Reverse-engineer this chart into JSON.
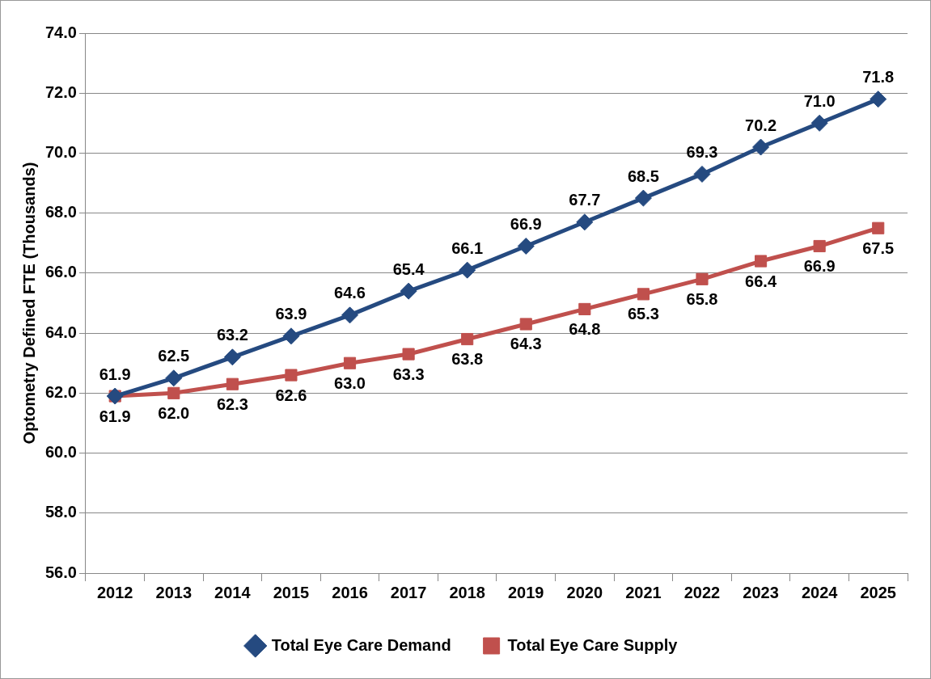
{
  "chart_data": {
    "type": "line",
    "ylabel": "Optometry Defined FTE (Thousands)",
    "categories": [
      "2012",
      "2013",
      "2014",
      "2015",
      "2016",
      "2017",
      "2018",
      "2019",
      "2020",
      "2021",
      "2022",
      "2023",
      "2024",
      "2025"
    ],
    "series": [
      {
        "name": "Total Eye Care Demand",
        "color": "#254a80",
        "marker": "diamond",
        "values": [
          61.9,
          62.5,
          63.2,
          63.9,
          64.6,
          65.4,
          66.1,
          66.9,
          67.7,
          68.5,
          69.3,
          70.2,
          71.0,
          71.8
        ],
        "value_labels": [
          "61.9",
          "62.5",
          "63.2",
          "63.9",
          "64.6",
          "65.4",
          "66.1",
          "66.9",
          "67.7",
          "68.5",
          "69.3",
          "70.2",
          "71.0",
          "71.8"
        ]
      },
      {
        "name": "Total Eye Care Supply",
        "color": "#c0504d",
        "marker": "square",
        "values": [
          61.9,
          62.0,
          62.3,
          62.6,
          63.0,
          63.3,
          63.8,
          64.3,
          64.8,
          65.3,
          65.8,
          66.4,
          66.9,
          67.5
        ],
        "value_labels": [
          "61.9",
          "62.0",
          "62.3",
          "62.6",
          "63.0",
          "63.3",
          "63.8",
          "64.3",
          "64.8",
          "65.3",
          "65.8",
          "66.4",
          "66.9",
          "67.5"
        ]
      }
    ],
    "ylim": [
      56,
      74
    ],
    "yticks": [
      {
        "value": 56,
        "label": "56.0"
      },
      {
        "value": 58,
        "label": "58.0"
      },
      {
        "value": 60,
        "label": "60.0"
      },
      {
        "value": 62,
        "label": "62.0"
      },
      {
        "value": 64,
        "label": "64.0"
      },
      {
        "value": 66,
        "label": "66.0"
      },
      {
        "value": 68,
        "label": "68.0"
      },
      {
        "value": 70,
        "label": "70.0"
      },
      {
        "value": 72,
        "label": "72.0"
      },
      {
        "value": 74,
        "label": "74.0"
      }
    ],
    "grid": "y",
    "legend": "bottom",
    "line_style": "solid"
  }
}
